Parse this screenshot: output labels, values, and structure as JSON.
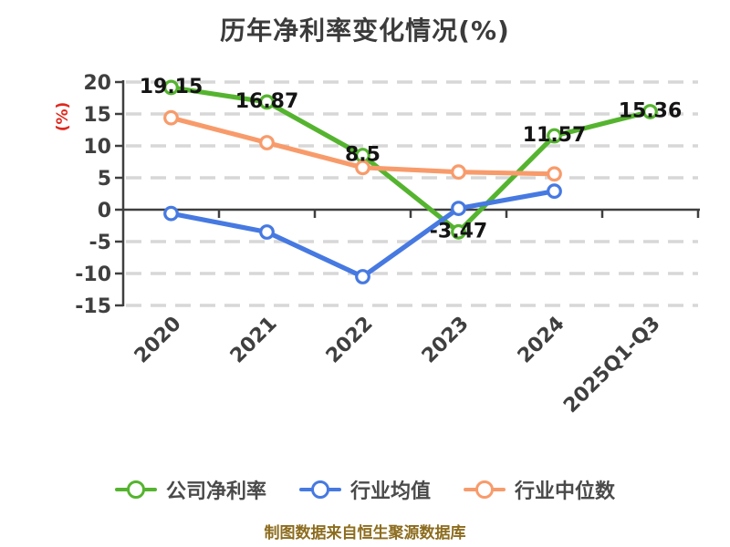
{
  "footer": "制图数据来自恒生聚源数据库",
  "colors": {
    "title": "#3b3b3b",
    "axis": "#3f3f3f",
    "grid": "#d7d7d7",
    "tick_text": "#3f3f3f",
    "y_label_red": "#e0281e",
    "data_label": "#141414",
    "legend_text": "#4a4a4a",
    "footer_text": "#8c6c1e",
    "marker_fill": "#ffffff"
  },
  "chart_data": {
    "type": "line",
    "title": "历年净利率变化情况(%)",
    "xlabel": "",
    "ylabel": "(%)",
    "categories": [
      "2020",
      "2021",
      "2022",
      "2023",
      "2024",
      "2025Q1-Q3"
    ],
    "series": [
      {
        "name": "公司净利率",
        "color": "#55b42f",
        "values": [
          19.15,
          16.87,
          8.5,
          -3.47,
          11.57,
          15.36
        ],
        "show_labels": true
      },
      {
        "name": "行业均值",
        "color": "#4679e1",
        "values": [
          -0.6,
          -3.5,
          -10.5,
          0.2,
          2.9,
          null
        ],
        "show_labels": false
      },
      {
        "name": "行业中位数",
        "color": "#f89b6b",
        "values": [
          14.4,
          10.5,
          6.6,
          5.9,
          5.6,
          null
        ],
        "show_labels": false
      }
    ],
    "ylim": [
      -15,
      20
    ],
    "ytick_step": 5,
    "grid": "dashed horizontal gridlines, solid axis line at 0",
    "legend_position": "bottom"
  }
}
